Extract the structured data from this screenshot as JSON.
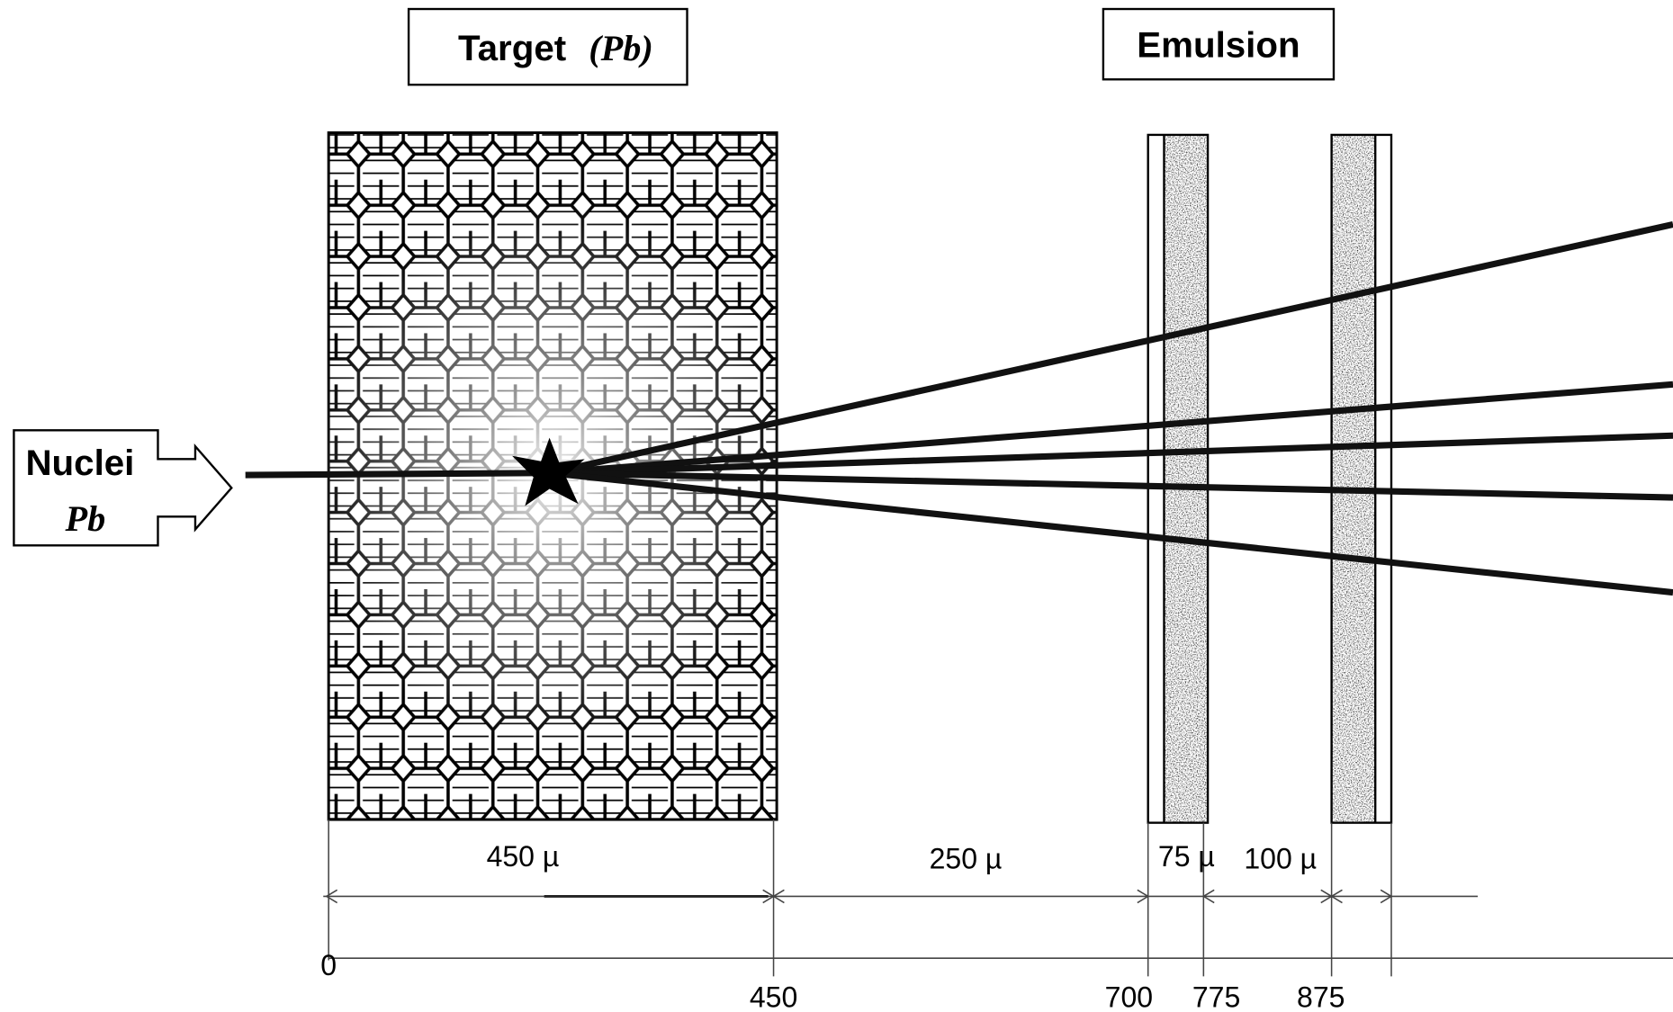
{
  "target": {
    "label": "Target",
    "material": "(Pb)"
  },
  "emulsion": {
    "label": "Emulsion"
  },
  "beam": {
    "label": "Nuclei",
    "material": "Pb"
  },
  "dimensions": [
    "450 µ",
    "250 µ",
    "75 µ",
    "100 µ"
  ],
  "axis": [
    "0",
    "450",
    "700",
    "775",
    "875"
  ]
}
